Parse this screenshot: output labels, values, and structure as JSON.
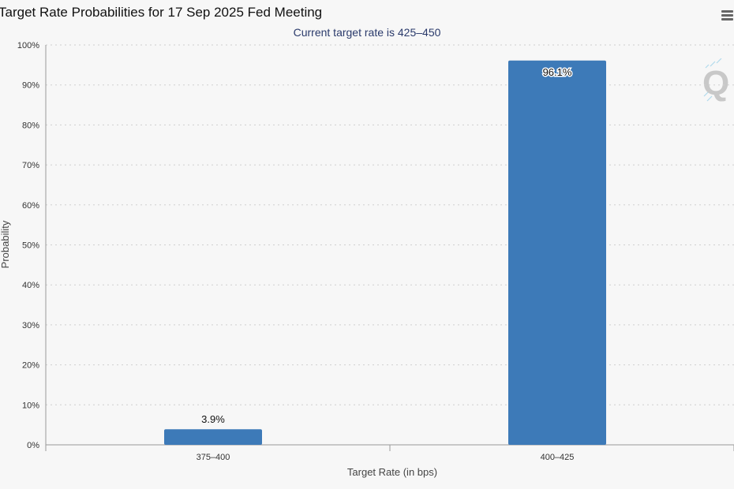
{
  "chart": {
    "title": "Target Rate Probabilities for 17 Sep 2025 Fed Meeting",
    "subtitle": "Current target rate is 425–450",
    "menu_icon": "hamburger-menu-icon",
    "watermark_letter": "Q"
  },
  "colors": {
    "bar": "#3d7ab8",
    "grid": "#cfcfcf",
    "axis": "#999999",
    "subtitle": "#2a3a6b"
  },
  "chart_data": {
    "type": "bar",
    "title": "Target Rate Probabilities for 17 Sep 2025 Fed Meeting",
    "subtitle": "Current target rate is 425–450",
    "categories": [
      "375-400",
      "400-425"
    ],
    "values": [
      3.9,
      96.1
    ],
    "data_labels": [
      "3.9%",
      "96.1%"
    ],
    "xlabel": "Target Rate (in bps)",
    "ylabel": "Probability",
    "ylim": [
      0,
      100
    ],
    "yticks": [
      "0%",
      "10%",
      "20%",
      "30%",
      "40%",
      "50%",
      "60%",
      "70%",
      "80%",
      "90%",
      "100%"
    ],
    "grid": true,
    "legend": false
  }
}
